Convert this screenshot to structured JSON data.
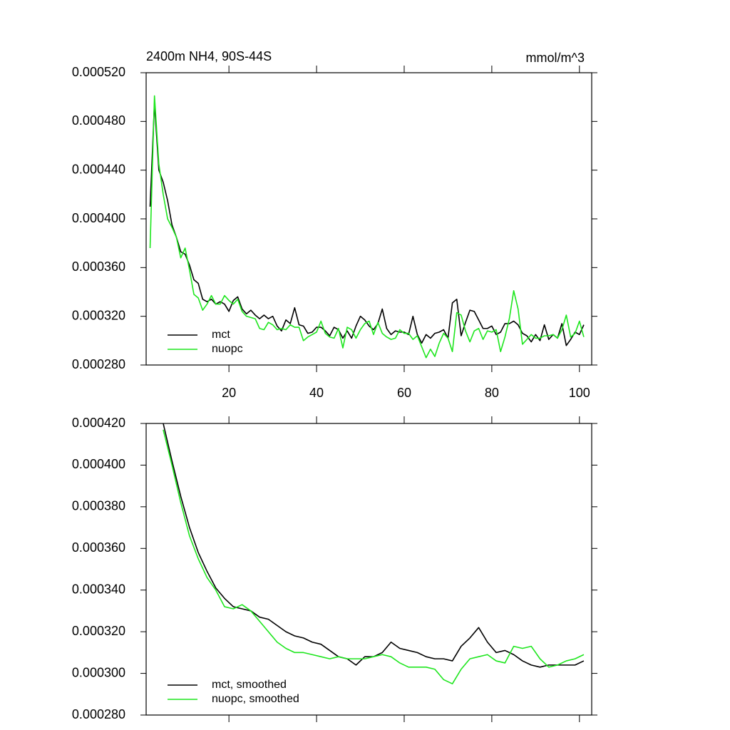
{
  "chart_data": [
    {
      "type": "line",
      "title": "2400m NH4, 90S-44S",
      "y_units": "mmol/m^3",
      "x": [
        2,
        3,
        4,
        5,
        6,
        7,
        8,
        9,
        10,
        11,
        12,
        13,
        14,
        15,
        16,
        17,
        18,
        19,
        20,
        21,
        22,
        23,
        24,
        25,
        26,
        27,
        28,
        29,
        30,
        31,
        32,
        33,
        34,
        35,
        36,
        37,
        38,
        39,
        40,
        41,
        42,
        43,
        44,
        45,
        46,
        47,
        48,
        49,
        50,
        51,
        52,
        53,
        54,
        55,
        56,
        57,
        58,
        59,
        60,
        61,
        62,
        63,
        64,
        65,
        66,
        67,
        68,
        69,
        70,
        71,
        72,
        73,
        74,
        75,
        76,
        77,
        78,
        79,
        80,
        81,
        82,
        83,
        84,
        85,
        86,
        87,
        88,
        89,
        90,
        91,
        92,
        93,
        94,
        95,
        96,
        97,
        98,
        99,
        100,
        101
      ],
      "series": [
        {
          "name": "mct",
          "color": "#000000",
          "values": [
            0.00041,
            0.000495,
            0.00044,
            0.00043,
            0.000415,
            0.000395,
            0.000385,
            0.000373,
            0.000371,
            0.000362,
            0.00035,
            0.000347,
            0.000334,
            0.000332,
            0.000334,
            0.00033,
            0.000332,
            0.00033,
            0.000324,
            0.000333,
            0.000336,
            0.000326,
            0.000322,
            0.000325,
            0.000321,
            0.000318,
            0.000321,
            0.000318,
            0.00032,
            0.000312,
            0.000308,
            0.000317,
            0.000314,
            0.000327,
            0.000313,
            0.000312,
            0.000306,
            0.000307,
            0.000311,
            0.000311,
            0.000308,
            0.000304,
            0.000311,
            0.000309,
            0.000302,
            0.000308,
            0.000302,
            0.000312,
            0.00032,
            0.000317,
            0.000312,
            0.000309,
            0.000314,
            0.000326,
            0.00031,
            0.000305,
            0.000308,
            0.000307,
            0.000307,
            0.000305,
            0.00032,
            0.000305,
            0.000298,
            0.000305,
            0.000302,
            0.000306,
            0.000307,
            0.000309,
            0.000302,
            0.000331,
            0.000334,
            0.000304,
            0.000315,
            0.000325,
            0.000324,
            0.000317,
            0.00031,
            0.00031,
            0.000312,
            0.000305,
            0.000307,
            0.000314,
            0.000314,
            0.000316,
            0.000313,
            0.000306,
            0.000304,
            0.000299,
            0.000305,
            0.0003,
            0.000313,
            0.000301,
            0.000305,
            0.000302,
            0.000314,
            0.000296,
            0.000301,
            0.000307,
            0.000305,
            0.000313
          ]
        },
        {
          "name": "nuopc",
          "color": "#1ee61e",
          "values": [
            0.000376,
            0.000501,
            0.000445,
            0.00042,
            0.0004,
            0.000393,
            0.000385,
            0.000368,
            0.000376,
            0.000358,
            0.000338,
            0.000335,
            0.000325,
            0.00033,
            0.000337,
            0.00033,
            0.00033,
            0.000337,
            0.000333,
            0.00033,
            0.000334,
            0.000324,
            0.00032,
            0.000319,
            0.000318,
            0.00031,
            0.000309,
            0.000315,
            0.000313,
            0.000309,
            0.00031,
            0.000309,
            0.000313,
            0.000311,
            0.000311,
            0.0003,
            0.000303,
            0.000305,
            0.000307,
            0.000316,
            0.000306,
            0.000303,
            0.000302,
            0.00031,
            0.000294,
            0.000311,
            0.000309,
            0.000302,
            0.000309,
            0.000314,
            0.000316,
            0.000305,
            0.000315,
            0.000306,
            0.000303,
            0.000301,
            0.000302,
            0.000309,
            0.000306,
            0.000306,
            0.000301,
            0.000304,
            0.000295,
            0.000286,
            0.000293,
            0.000287,
            0.000298,
            0.000306,
            0.000302,
            0.000291,
            0.000323,
            0.000321,
            0.000308,
            0.000299,
            0.000308,
            0.00031,
            0.000301,
            0.000308,
            0.000307,
            0.000309,
            0.000291,
            0.000303,
            0.000318,
            0.000341,
            0.000326,
            0.000297,
            0.000301,
            0.000305,
            0.000302,
            0.000302,
            0.000304,
            0.000304,
            0.000305,
            0.000302,
            0.000309,
            0.000321,
            0.000303,
            0.000306,
            0.000316,
            0.000303
          ]
        }
      ],
      "xlim": [
        1.1,
        102.8
      ],
      "xticks": [
        20,
        40,
        60,
        80,
        100
      ],
      "show_xtick_labels": true,
      "ylim": [
        0.00028,
        0.00052
      ],
      "yticks": [
        {
          "value": 0.00028,
          "label": "0.000280"
        },
        {
          "value": 0.00032,
          "label": "0.000320"
        },
        {
          "value": 0.00036,
          "label": "0.000360"
        },
        {
          "value": 0.0004,
          "label": "0.000400"
        },
        {
          "value": 0.00044,
          "label": "0.000440"
        },
        {
          "value": 0.00048,
          "label": "0.000480"
        },
        {
          "value": 0.00052,
          "label": "0.000520"
        }
      ],
      "legend": "lower left"
    },
    {
      "type": "line",
      "x": [
        5,
        7,
        9,
        11,
        13,
        15,
        17,
        19,
        21,
        23,
        25,
        27,
        29,
        31,
        33,
        35,
        37,
        39,
        41,
        43,
        45,
        47,
        49,
        51,
        53,
        55,
        57,
        59,
        61,
        63,
        65,
        67,
        69,
        71,
        73,
        75,
        77,
        79,
        81,
        83,
        85,
        87,
        89,
        91,
        93,
        95,
        97,
        99,
        101
      ],
      "series": [
        {
          "name": "mct, smoothed",
          "color": "#000000",
          "values": [
            0.00042,
            0.000402,
            0.000385,
            0.00037,
            0.000358,
            0.000349,
            0.000341,
            0.000336,
            0.000332,
            0.000331,
            0.00033,
            0.000327,
            0.000326,
            0.000323,
            0.00032,
            0.000318,
            0.000317,
            0.000315,
            0.000314,
            0.000311,
            0.000308,
            0.000307,
            0.000304,
            0.000308,
            0.000308,
            0.00031,
            0.000315,
            0.000312,
            0.000311,
            0.00031,
            0.000308,
            0.000307,
            0.000307,
            0.000306,
            0.000313,
            0.000317,
            0.000322,
            0.000315,
            0.00031,
            0.000311,
            0.000309,
            0.000306,
            0.000304,
            0.000303,
            0.000304,
            0.000304,
            0.000304,
            0.000304,
            0.000306
          ]
        },
        {
          "name": "nuopc, smoothed",
          "color": "#1ee61e",
          "values": [
            0.000417,
            0.0004,
            0.000382,
            0.000366,
            0.000355,
            0.000346,
            0.00034,
            0.000332,
            0.000331,
            0.000333,
            0.00033,
            0.000325,
            0.00032,
            0.000315,
            0.000312,
            0.00031,
            0.00031,
            0.000309,
            0.000308,
            0.000307,
            0.000308,
            0.000307,
            0.000307,
            0.000307,
            0.000308,
            0.000309,
            0.000308,
            0.000305,
            0.000303,
            0.000303,
            0.000303,
            0.000302,
            0.000297,
            0.000295,
            0.000302,
            0.000307,
            0.000308,
            0.000309,
            0.000306,
            0.000305,
            0.000313,
            0.000312,
            0.000313,
            0.000307,
            0.000303,
            0.000304,
            0.000306,
            0.000307,
            0.000309
          ]
        }
      ],
      "xlim": [
        1.1,
        102.8
      ],
      "xticks": [
        20,
        40,
        60,
        80,
        100
      ],
      "show_xtick_labels": false,
      "ylim": [
        0.00028,
        0.00042
      ],
      "yticks": [
        {
          "value": 0.00028,
          "label": "0.000280"
        },
        {
          "value": 0.0003,
          "label": "0.000300"
        },
        {
          "value": 0.00032,
          "label": "0.000320"
        },
        {
          "value": 0.00034,
          "label": "0.000340"
        },
        {
          "value": 0.00036,
          "label": "0.000360"
        },
        {
          "value": 0.00038,
          "label": "0.000380"
        },
        {
          "value": 0.0004,
          "label": "0.000400"
        },
        {
          "value": 0.00042,
          "label": "0.000420"
        }
      ],
      "legend": "lower left"
    }
  ]
}
